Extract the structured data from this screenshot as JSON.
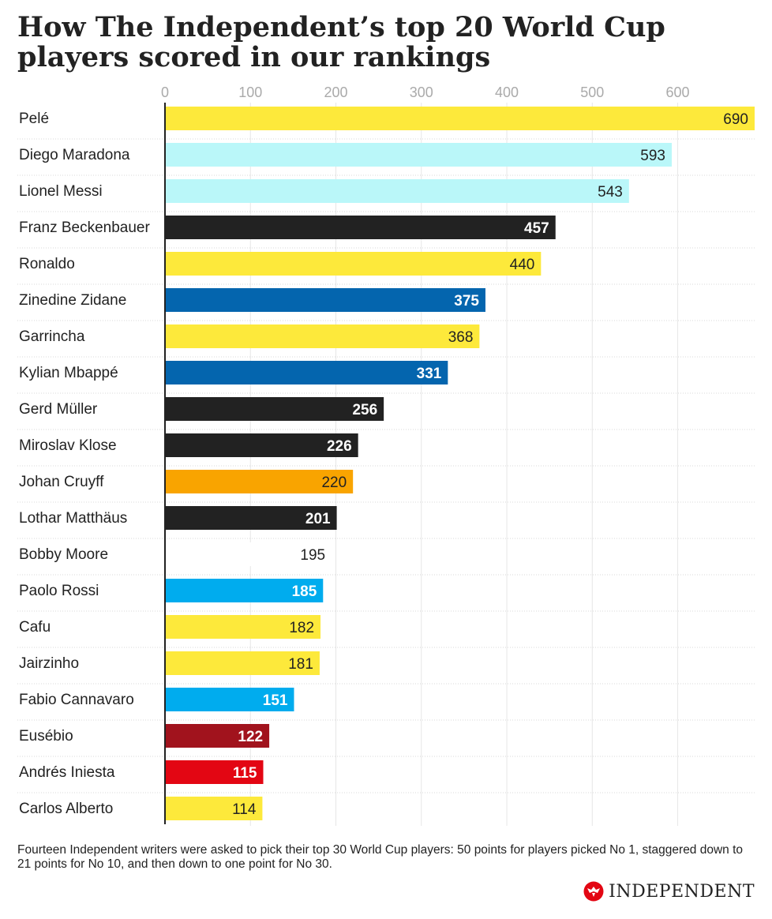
{
  "header": {
    "title": "How The Independent’s top 20 World Cup players scored in our rankings"
  },
  "chart_data": {
    "type": "bar",
    "orientation": "horizontal",
    "title": "How The Independent’s top 20 World Cup players scored in our rankings",
    "xlim": [
      0,
      690
    ],
    "xticks": [
      0,
      100,
      200,
      300,
      400,
      500,
      600
    ],
    "grid": true,
    "categories": [
      "Pelé",
      "Diego Maradona",
      "Lionel Messi",
      "Franz Beckenbauer",
      "Ronaldo",
      "Zinedine Zidane",
      "Garrincha",
      "Kylian Mbappé",
      "Gerd Müller",
      "Miroslav Klose",
      "Johan Cruyff",
      "Lothar Matthäus",
      "Bobby Moore",
      "Paolo Rossi",
      "Cafu",
      "Jairzinho",
      "Fabio Cannavaro",
      "Eusébio",
      "Andrés Iniesta",
      "Carlos Alberto"
    ],
    "values": [
      690,
      593,
      543,
      457,
      440,
      375,
      368,
      331,
      256,
      226,
      220,
      201,
      195,
      185,
      182,
      181,
      151,
      122,
      115,
      114
    ],
    "colors": [
      "#fde93b",
      "#baf7f9",
      "#baf7f9",
      "#222222",
      "#fde93b",
      "#0465ae",
      "#fde93b",
      "#0465ae",
      "#222222",
      "#222222",
      "#f9a400",
      "#222222",
      "#ffffff",
      "#00acee",
      "#fde93b",
      "#fde93b",
      "#00acee",
      "#a1131d",
      "#e30613",
      "#fde93b"
    ],
    "label_colors": [
      "#222222",
      "#222222",
      "#222222",
      "#ffffff",
      "#222222",
      "#ffffff",
      "#222222",
      "#ffffff",
      "#ffffff",
      "#ffffff",
      "#222222",
      "#ffffff",
      "#222222",
      "#ffffff",
      "#222222",
      "#222222",
      "#ffffff",
      "#ffffff",
      "#ffffff",
      "#222222"
    ]
  },
  "footer": {
    "note": "Fourteen Independent writers were asked to pick their top 30 World Cup players: 50 points for players picked No 1, staggered down to 21 points for No 10, and then down to one point for No 30.",
    "brand": "INDEPENDENT",
    "brand_icon": "eagle-logo-icon",
    "brand_color": "#e30613"
  }
}
